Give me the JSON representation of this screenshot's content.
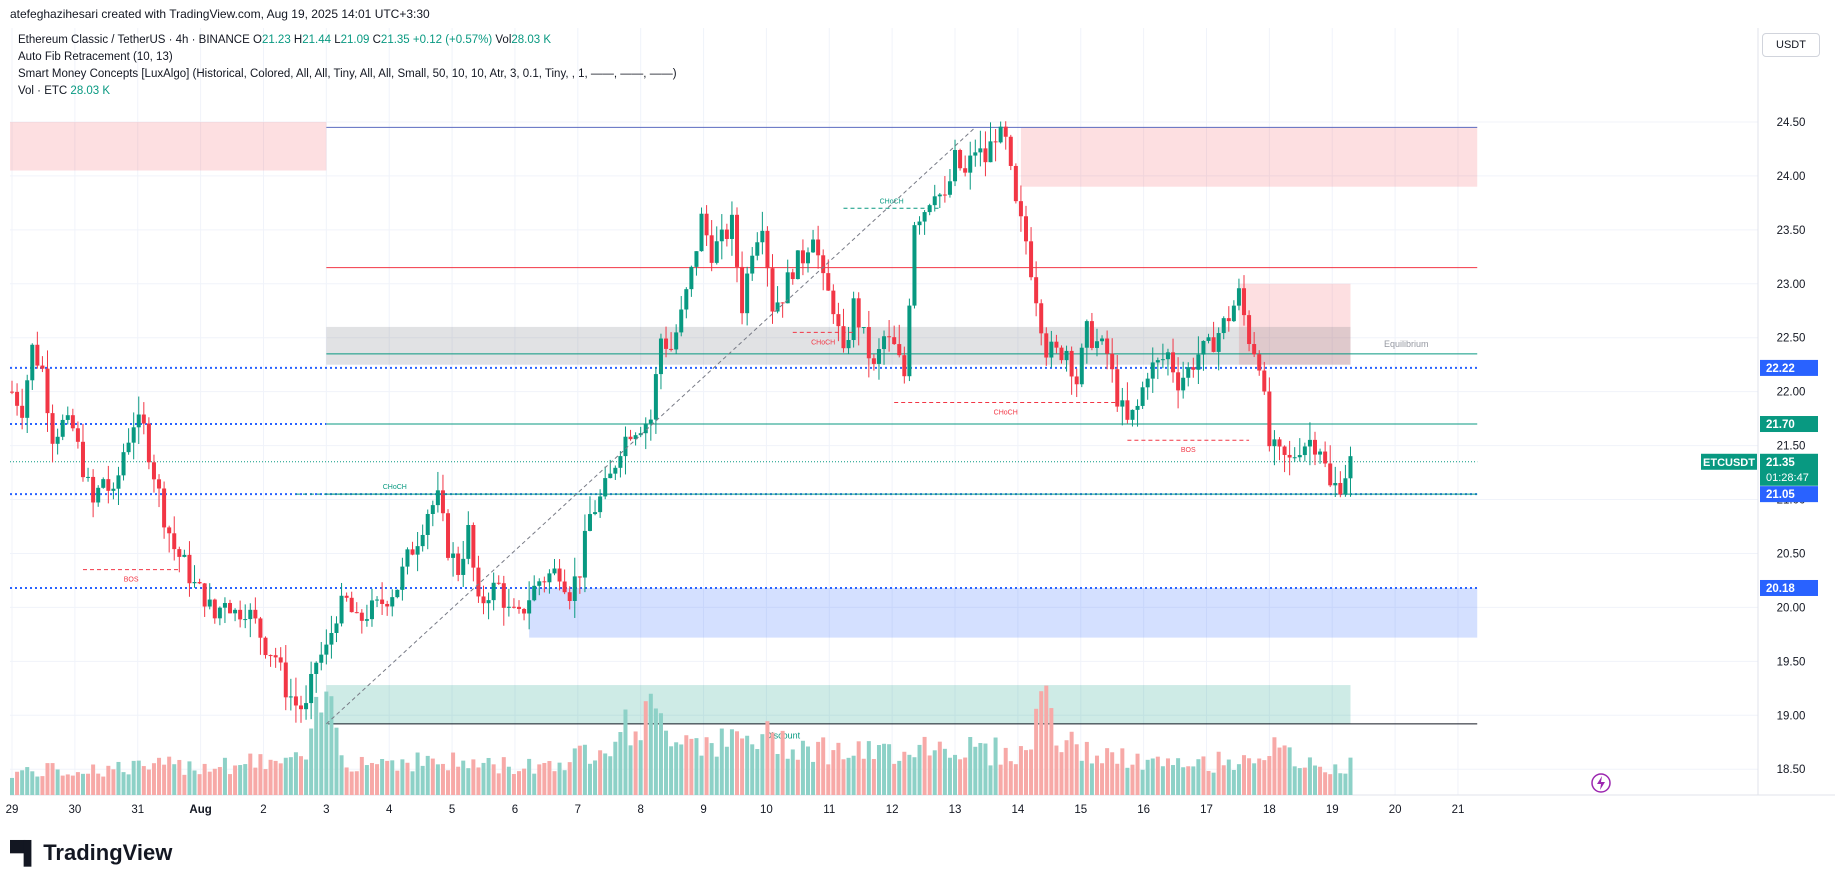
{
  "header": {
    "creator_line": "atefeghazihesari created with TradingView.com, Aug 19, 2025 14:01 UTC+3:30",
    "symbol_title": "Ethereum Classic / TetherUS · 4h · BINANCE",
    "ohlc": {
      "o_label": "O",
      "o": "21.23",
      "h_label": "H",
      "h": "21.44",
      "l_label": "L",
      "l": "21.09",
      "c_label": "C",
      "c": "21.35",
      "change": "+0.12 (+0.57%)",
      "vol_label": "Vol",
      "vol": "28.03 K"
    },
    "indicator1": "Auto Fib Retracement (10, 13)",
    "indicator2": "Smart Money Concepts [LuxAlgo] (Historical, Colored, All, All, Tiny, All, All, Small, 50, 10, 10, Atr, 3, 0.1, Tiny, , 1, ——, ——, ——)",
    "indicator3_label": "Vol · ETC",
    "indicator3_value": "28.03 K"
  },
  "currency_button": "USDT",
  "logo_text": "TradingView",
  "colors": {
    "up": "#089981",
    "down": "#f23645",
    "up_vol": "#8dd1c7",
    "down_vol": "#f7a9a7",
    "blue_line": "#2962ff",
    "green_line": "#089981"
  },
  "chart_data": {
    "type": "candlestick",
    "title": "Ethereum Classic / TetherUS · 4h · BINANCE",
    "ylim": [
      18.4,
      24.75
    ],
    "y_ticks": [
      "18.50",
      "19.00",
      "19.50",
      "20.00",
      "20.50",
      "21.00",
      "21.50",
      "22.00",
      "22.50",
      "23.00",
      "23.50",
      "24.00",
      "24.50"
    ],
    "x_ticks": [
      {
        "label": "29",
        "i": 0
      },
      {
        "label": "30",
        "i": 12.4
      },
      {
        "label": "31",
        "i": 24.8
      },
      {
        "label": "Aug",
        "i": 37.2
      },
      {
        "label": "2",
        "i": 49.6
      },
      {
        "label": "3",
        "i": 62
      },
      {
        "label": "4",
        "i": 74.4
      },
      {
        "label": "5",
        "i": 86.8
      },
      {
        "label": "6",
        "i": 99.2
      },
      {
        "label": "7",
        "i": 111.6
      },
      {
        "label": "8",
        "i": 124
      },
      {
        "label": "9",
        "i": 136.4
      },
      {
        "label": "10",
        "i": 148.8
      },
      {
        "label": "11",
        "i": 161.2
      },
      {
        "label": "12",
        "i": 173.6
      },
      {
        "label": "13",
        "i": 186
      },
      {
        "label": "14",
        "i": 198.4
      },
      {
        "label": "15",
        "i": 210.8
      },
      {
        "label": "16",
        "i": 223.2
      },
      {
        "label": "17",
        "i": 235.6
      },
      {
        "label": "18",
        "i": 248
      },
      {
        "label": "19",
        "i": 260.4
      },
      {
        "label": "20",
        "i": 272.8
      },
      {
        "label": "21",
        "i": 285.2
      }
    ],
    "anchors": [
      [
        0,
        22.0
      ],
      [
        2,
        21.85
      ],
      [
        4,
        22.4
      ],
      [
        6,
        22.2
      ],
      [
        8,
        21.6
      ],
      [
        10,
        21.7
      ],
      [
        12,
        21.65
      ],
      [
        14,
        21.3
      ],
      [
        16,
        20.95
      ],
      [
        18,
        21.2
      ],
      [
        20,
        21.0
      ],
      [
        22,
        21.45
      ],
      [
        24,
        21.72
      ],
      [
        26,
        21.65
      ],
      [
        28,
        21.25
      ],
      [
        30,
        20.85
      ],
      [
        32,
        20.55
      ],
      [
        34,
        20.4
      ],
      [
        36,
        20.2
      ],
      [
        38,
        20.1
      ],
      [
        40,
        19.9
      ],
      [
        42,
        20.1
      ],
      [
        44,
        19.95
      ],
      [
        46,
        20.0
      ],
      [
        48,
        19.85
      ],
      [
        50,
        19.65
      ],
      [
        52,
        19.55
      ],
      [
        54,
        19.25
      ],
      [
        56,
        19.1
      ],
      [
        58,
        19.05
      ],
      [
        60,
        19.5
      ],
      [
        62,
        19.6
      ],
      [
        64,
        19.95
      ],
      [
        66,
        20.05
      ],
      [
        68,
        19.85
      ],
      [
        70,
        19.95
      ],
      [
        72,
        20.0
      ],
      [
        74,
        20.1
      ],
      [
        76,
        20.2
      ],
      [
        78,
        20.45
      ],
      [
        80,
        20.65
      ],
      [
        82,
        20.9
      ],
      [
        84,
        21.0
      ],
      [
        86,
        20.55
      ],
      [
        88,
        20.35
      ],
      [
        90,
        20.7
      ],
      [
        92,
        20.0
      ],
      [
        94,
        20.15
      ],
      [
        96,
        20.2
      ],
      [
        98,
        19.95
      ],
      [
        100,
        19.9
      ],
      [
        102,
        20.1
      ],
      [
        104,
        20.25
      ],
      [
        106,
        20.3
      ],
      [
        108,
        20.35
      ],
      [
        110,
        20.15
      ],
      [
        112,
        20.35
      ],
      [
        114,
        20.85
      ],
      [
        116,
        21.0
      ],
      [
        118,
        21.2
      ],
      [
        120,
        21.5
      ],
      [
        122,
        21.65
      ],
      [
        124,
        21.7
      ],
      [
        126,
        21.75
      ],
      [
        128,
        22.5
      ],
      [
        130,
        22.4
      ],
      [
        132,
        22.7
      ],
      [
        134,
        23.1
      ],
      [
        136,
        23.6
      ],
      [
        138,
        23.3
      ],
      [
        140,
        23.4
      ],
      [
        142,
        23.55
      ],
      [
        144,
        22.8
      ],
      [
        146,
        23.35
      ],
      [
        148,
        23.6
      ],
      [
        150,
        22.8
      ],
      [
        152,
        22.9
      ],
      [
        154,
        23.15
      ],
      [
        156,
        23.25
      ],
      [
        158,
        23.5
      ],
      [
        160,
        23.0
      ],
      [
        162,
        22.8
      ],
      [
        164,
        22.3
      ],
      [
        166,
        22.8
      ],
      [
        168,
        22.5
      ],
      [
        170,
        22.2
      ],
      [
        172,
        22.5
      ],
      [
        174,
        22.4
      ],
      [
        176,
        22.15
      ],
      [
        178,
        23.6
      ],
      [
        180,
        23.7
      ],
      [
        182,
        23.9
      ],
      [
        184,
        23.75
      ],
      [
        186,
        24.15
      ],
      [
        188,
        24.0
      ],
      [
        190,
        24.25
      ],
      [
        192,
        24.15
      ],
      [
        194,
        24.4
      ],
      [
        196,
        24.3
      ],
      [
        198,
        23.7
      ],
      [
        200,
        23.4
      ],
      [
        202,
        22.9
      ],
      [
        204,
        22.4
      ],
      [
        206,
        22.35
      ],
      [
        208,
        22.4
      ],
      [
        210,
        22.1
      ],
      [
        212,
        22.55
      ],
      [
        214,
        22.45
      ],
      [
        216,
        22.35
      ],
      [
        218,
        21.95
      ],
      [
        220,
        21.7
      ],
      [
        222,
        21.85
      ],
      [
        224,
        22.2
      ],
      [
        226,
        22.25
      ],
      [
        228,
        22.35
      ],
      [
        230,
        22.1
      ],
      [
        232,
        22.2
      ],
      [
        234,
        22.35
      ],
      [
        236,
        22.4
      ],
      [
        238,
        22.55
      ],
      [
        240,
        22.7
      ],
      [
        242,
        22.9
      ],
      [
        244,
        22.5
      ],
      [
        246,
        22.3
      ],
      [
        248,
        21.5
      ],
      [
        250,
        21.4
      ],
      [
        252,
        21.35
      ],
      [
        254,
        21.5
      ],
      [
        256,
        21.55
      ],
      [
        258,
        21.5
      ],
      [
        260,
        21.1
      ],
      [
        262,
        21.15
      ],
      [
        264,
        21.35
      ]
    ],
    "volume_anchors": [
      [
        0,
        0.2
      ],
      [
        30,
        0.25
      ],
      [
        58,
        0.3
      ],
      [
        60,
        0.65
      ],
      [
        62,
        0.9
      ],
      [
        64,
        0.6
      ],
      [
        66,
        0.3
      ],
      [
        80,
        0.3
      ],
      [
        100,
        0.25
      ],
      [
        110,
        0.3
      ],
      [
        120,
        0.55
      ],
      [
        126,
        0.7
      ],
      [
        128,
        0.6
      ],
      [
        136,
        0.5
      ],
      [
        140,
        0.45
      ],
      [
        150,
        0.5
      ],
      [
        160,
        0.4
      ],
      [
        170,
        0.35
      ],
      [
        180,
        0.45
      ],
      [
        190,
        0.4
      ],
      [
        200,
        0.35
      ],
      [
        204,
        1.0
      ],
      [
        206,
        0.5
      ],
      [
        210,
        0.4
      ],
      [
        220,
        0.3
      ],
      [
        230,
        0.25
      ],
      [
        240,
        0.3
      ],
      [
        248,
        0.4
      ],
      [
        256,
        0.25
      ],
      [
        264,
        0.25
      ]
    ],
    "price_labels": [
      {
        "label": "22.22",
        "price": 22.22,
        "color": "#2962ff"
      },
      {
        "label": "21.70",
        "price": 21.7,
        "color": "#089981"
      },
      {
        "label": "ETCUSDT",
        "label2": "21.35",
        "label3": "01:28:47",
        "price": 21.35,
        "color": "#089981"
      },
      {
        "label": "21.05",
        "price": 21.05,
        "color": "#2962ff"
      },
      {
        "label": "20.18",
        "price": 20.18,
        "color": "#2962ff"
      }
    ],
    "structures": [
      {
        "label": "BOS",
        "color": "#f23645",
        "i1": 14,
        "i2": 33,
        "price": 20.35
      },
      {
        "label": "CHoCH",
        "color": "#089981",
        "i1": 56,
        "i2": 95,
        "price": 21.05
      },
      {
        "label": "CHoCH",
        "color": "#089981",
        "i1": 164,
        "i2": 183,
        "price": 23.7
      },
      {
        "label": "CHoCH",
        "color": "#f23645",
        "i1": 154,
        "i2": 166,
        "price": 22.55
      },
      {
        "label": "CHoCH",
        "color": "#f23645",
        "i1": 174,
        "i2": 218,
        "price": 21.9
      },
      {
        "label": "BOS",
        "color": "#f23645",
        "i1": 220,
        "i2": 244,
        "price": 21.55
      }
    ],
    "zones": [
      {
        "type": "supply",
        "price_top": 24.5,
        "price_bottom": 24.05,
        "i1": -2,
        "i2": 62
      },
      {
        "type": "supply",
        "price_top": 24.45,
        "price_bottom": 23.9,
        "i1": 199,
        "i2": 289
      },
      {
        "type": "supply",
        "price_top": 23.0,
        "price_bottom": 22.25,
        "i1": 242,
        "i2": 264
      },
      {
        "type": "equilibrium",
        "price_top": 22.6,
        "price_bottom": 22.25,
        "i1": 62,
        "i2": 264
      },
      {
        "type": "demand",
        "price_top": 20.18,
        "price_bottom": 19.72,
        "i1": 102,
        "i2": 289
      },
      {
        "type": "discount",
        "price_top": 19.28,
        "price_bottom": 18.92,
        "i1": 62,
        "i2": 264
      }
    ],
    "level_lines": [
      {
        "price": 24.45,
        "color": "#5c6bc0",
        "style": "solid",
        "i1": 62,
        "i2": 289
      },
      {
        "price": 23.15,
        "color": "#f23645",
        "style": "solid",
        "i1": 62,
        "i2": 289
      },
      {
        "price": 22.35,
        "color": "#089981",
        "style": "solid",
        "i1": 62,
        "i2": 289
      },
      {
        "price": 22.22,
        "color": "#2962ff",
        "style": "dotted",
        "i1": -2,
        "i2": 289
      },
      {
        "price": 21.7,
        "color": "#089981",
        "style": "solid",
        "i1": 62,
        "i2": 289
      },
      {
        "price": 21.7,
        "color": "#2962ff",
        "style": "dotted",
        "i1": -2,
        "i2": 62
      },
      {
        "price": 21.35,
        "color": "#089981",
        "style": "fine",
        "i1": -2,
        "i2": 289
      },
      {
        "price": 21.05,
        "color": "#2962ff",
        "style": "dotted",
        "i1": -2,
        "i2": 289
      },
      {
        "price": 21.05,
        "color": "#089981",
        "style": "solid",
        "i1": 62,
        "i2": 289
      },
      {
        "price": 20.18,
        "color": "#2962ff",
        "style": "dotted",
        "i1": -2,
        "i2": 289
      },
      {
        "price": 18.92,
        "color": "#131722",
        "style": "solid",
        "i1": 62,
        "i2": 289
      }
    ],
    "zone_labels": [
      {
        "label": "Equilibrium",
        "price": 22.45,
        "i": 275
      },
      {
        "label": "Discount",
        "price": 18.82,
        "i": 152
      }
    ],
    "fib_line": {
      "i1": 62,
      "p1": 18.92,
      "i2": 190,
      "p2": 24.45
    }
  }
}
